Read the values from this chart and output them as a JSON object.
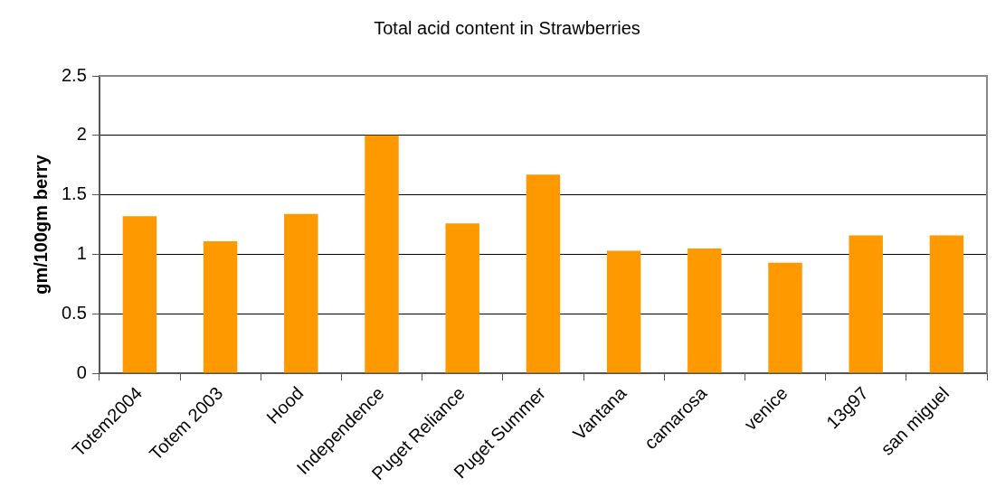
{
  "chart_data": {
    "type": "bar",
    "title": "Total acid content in Strawberries",
    "ylabel": "gm/100gm berry",
    "categories": [
      "Totem2004",
      "Totem 2003",
      "Hood",
      "Independence",
      "Puget Reliance",
      "Puget Summer",
      "Vantana",
      "camarosa",
      "venice",
      "13g97",
      "san miguel"
    ],
    "values": [
      1.32,
      1.11,
      1.34,
      2.0,
      1.26,
      1.67,
      1.03,
      1.05,
      0.93,
      1.16,
      1.16
    ],
    "color": "#ff9900",
    "ylim": [
      0,
      2.5
    ],
    "yticks": [
      0,
      0.5,
      1,
      1.5,
      2,
      2.5
    ],
    "grid": "y",
    "legend": false
  }
}
